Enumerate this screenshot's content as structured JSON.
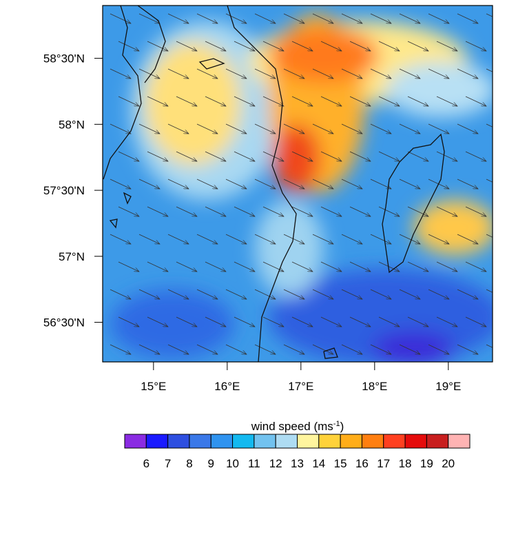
{
  "map": {
    "lon_range": [
      14.31,
      19.6
    ],
    "lat_range": [
      56.2,
      58.9
    ],
    "xticks": [
      {
        "value": 15,
        "label": "15°E"
      },
      {
        "value": 16,
        "label": "16°E"
      },
      {
        "value": 17,
        "label": "17°E"
      },
      {
        "value": 18,
        "label": "18°E"
      },
      {
        "value": 19,
        "label": "19°E"
      }
    ],
    "yticks": [
      {
        "value": 56.5,
        "label": "56°30'N"
      },
      {
        "value": 57,
        "label": "57°N"
      },
      {
        "value": 57.5,
        "label": "57°30'N"
      },
      {
        "value": 58,
        "label": "58°N"
      },
      {
        "value": 58.5,
        "label": "58°30'N"
      }
    ]
  },
  "colorbar": {
    "title": "wind speed  (ms",
    "title_superscript": "-1",
    "title_end": ")",
    "levels": [
      6,
      7,
      8,
      9,
      10,
      11,
      12,
      13,
      14,
      15,
      16,
      17,
      18,
      19,
      20
    ],
    "colors": [
      "#8a2be2",
      "#1a1aff",
      "#2e4fe0",
      "#3a78e8",
      "#2f93ef",
      "#13b9f0",
      "#72c2ef",
      "#aedcf3",
      "#fff59e",
      "#ffd23a",
      "#ffad19",
      "#ff7f10",
      "#ff4020",
      "#e50b0b",
      "#c81e1e",
      "#ffb3b3"
    ]
  }
}
